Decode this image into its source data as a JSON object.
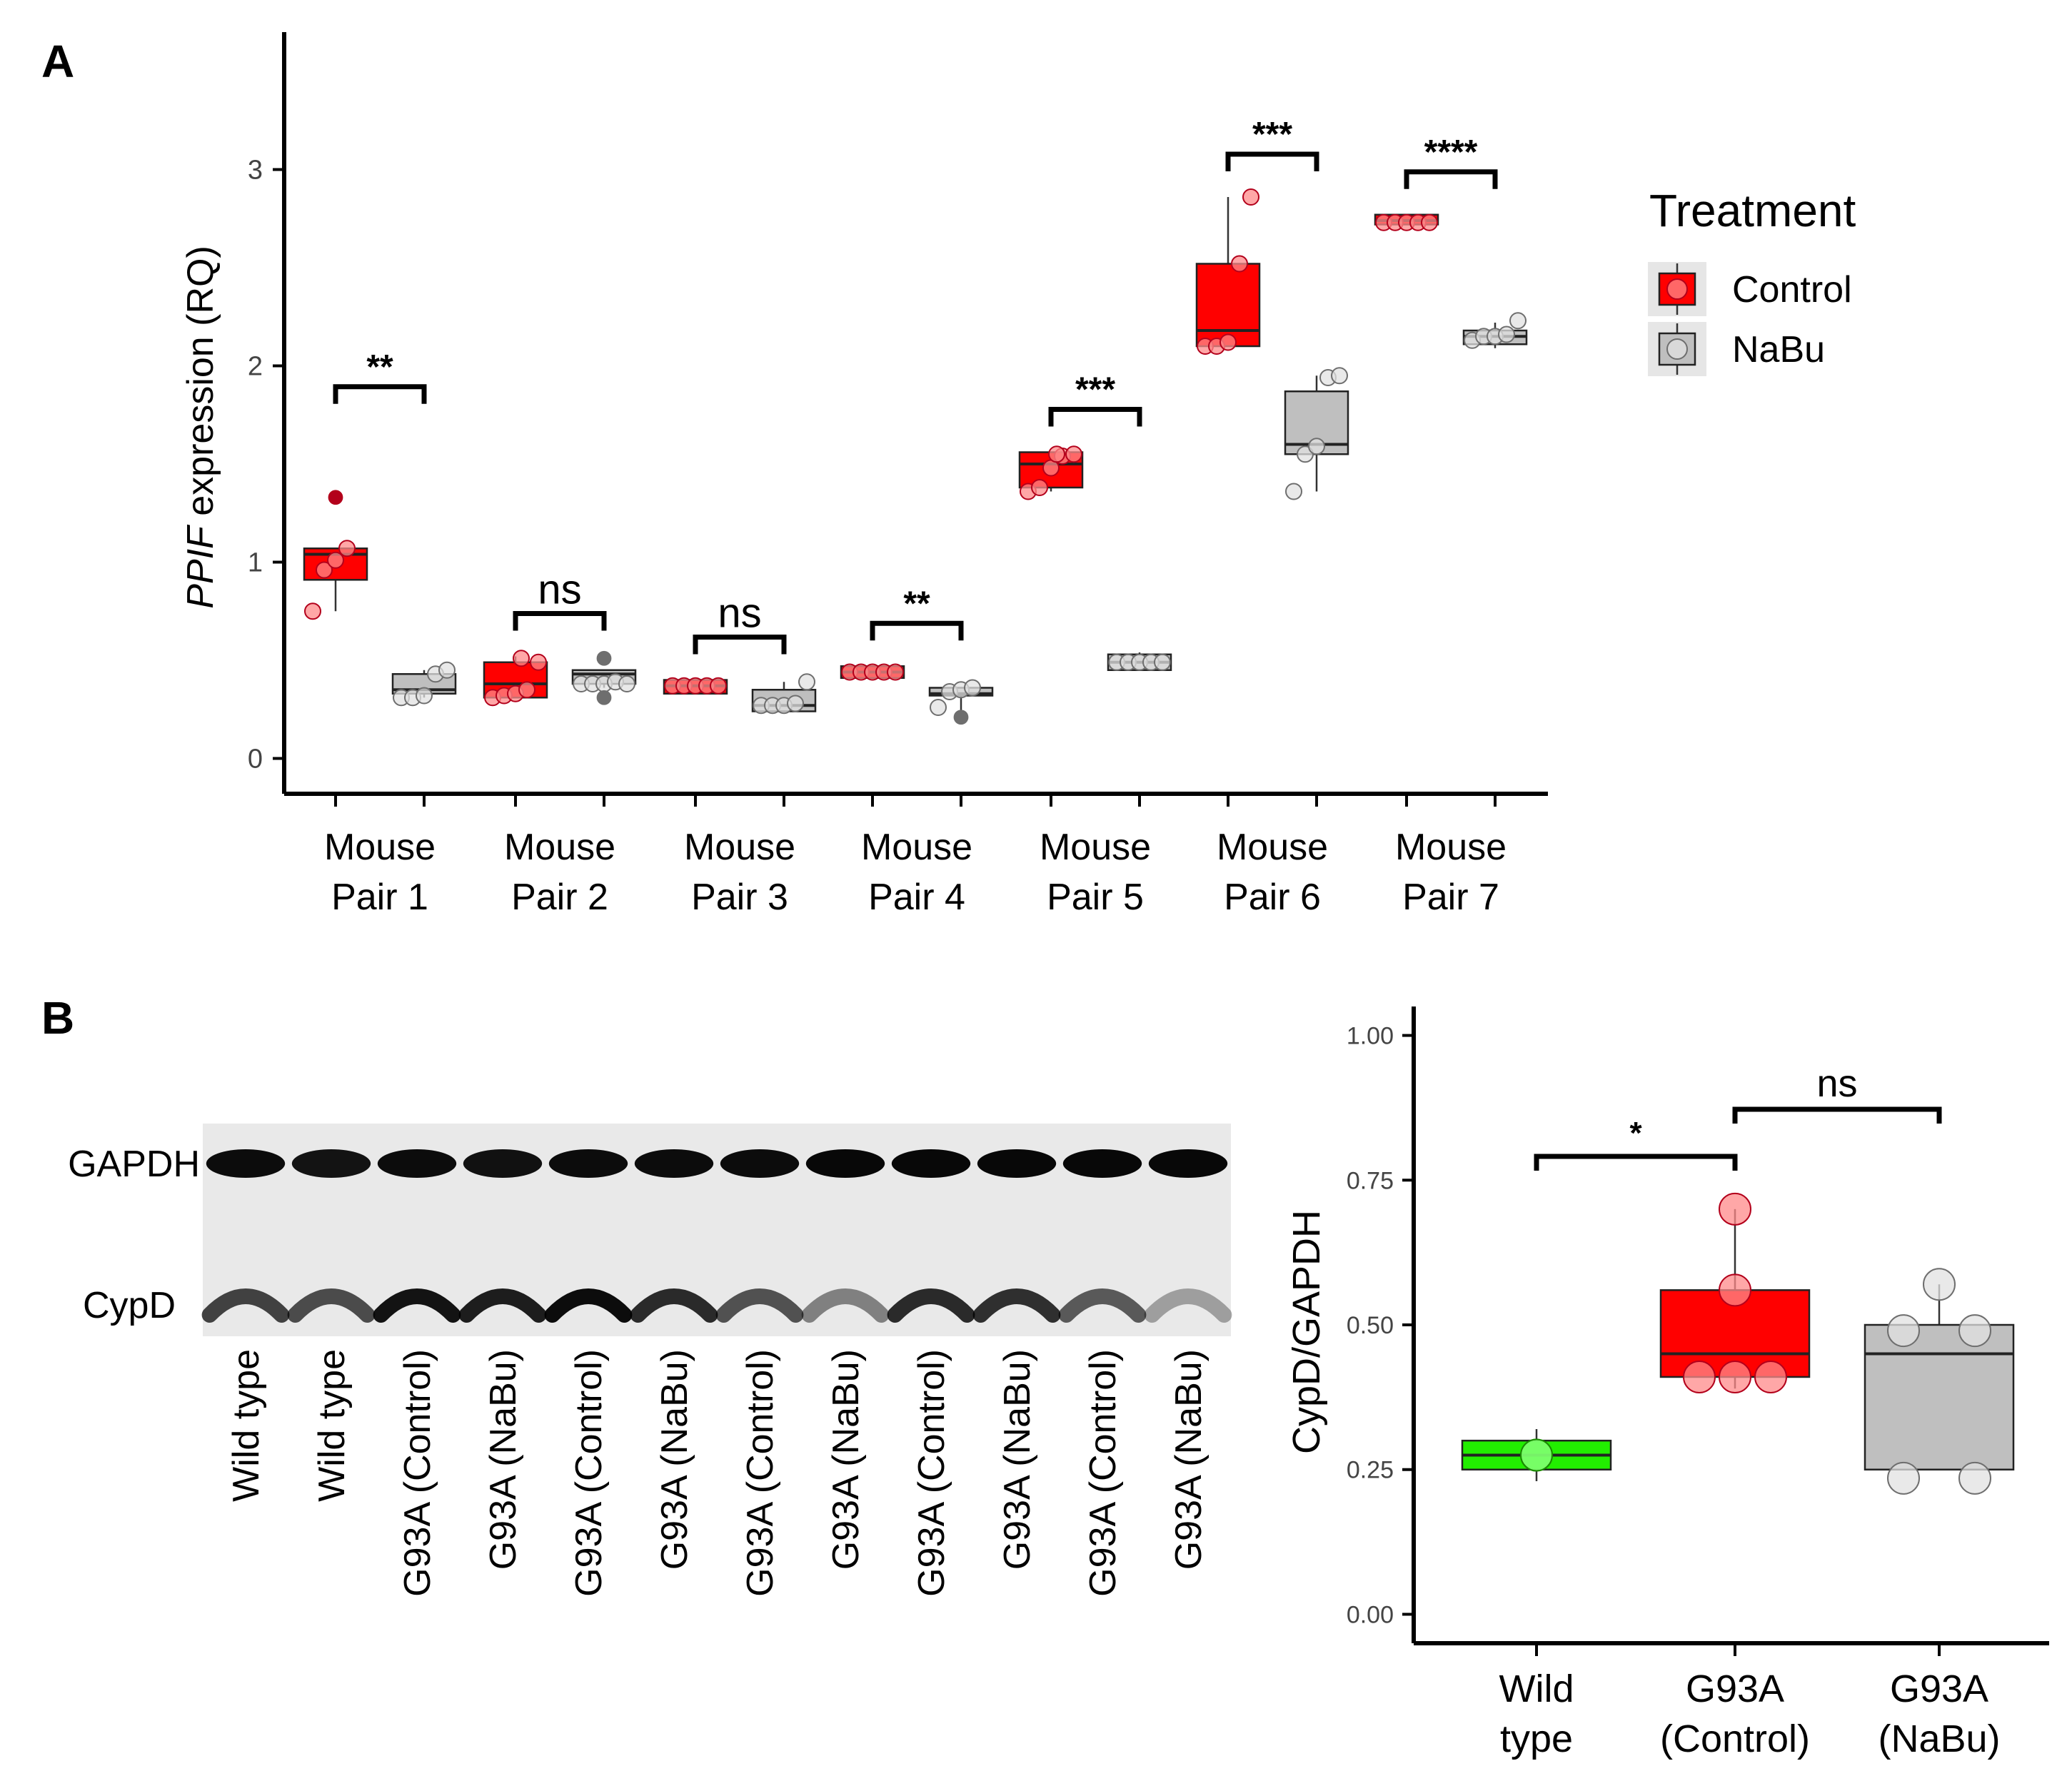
{
  "panel_labels": {
    "a": "A",
    "b": "B"
  },
  "colors": {
    "control": "#ff0000",
    "nabu": "#bfbfbf",
    "wild_type": "#22ee00",
    "axis": "#000000",
    "blot_bg": "#e9e9e9"
  },
  "chart_data": [
    {
      "id": "panel_a",
      "type": "box",
      "ylabel_italic": "PPIF",
      "ylabel_rest": " expression (RQ)",
      "ylim": [
        -0.18,
        3.7
      ],
      "yticks": [
        "0",
        "1",
        "2",
        "3"
      ],
      "categories": [
        [
          "Mouse",
          "Pair 1"
        ],
        [
          "Mouse",
          "Pair 2"
        ],
        [
          "Mouse",
          "Pair 3"
        ],
        [
          "Mouse",
          "Pair 4"
        ],
        [
          "Mouse",
          "Pair 5"
        ],
        [
          "Mouse",
          "Pair 6"
        ],
        [
          "Mouse",
          "Pair 7"
        ]
      ],
      "legend": {
        "title": "Treatment",
        "entries": [
          "Control",
          "NaBu"
        ],
        "position": "right"
      },
      "series": [
        {
          "name": "Control",
          "boxes": [
            {
              "min": 0.75,
              "q1": 0.91,
              "median": 1.04,
              "q3": 1.07,
              "max": 1.07,
              "points": [
                0.75,
                0.96,
                1.01,
                1.07
              ],
              "outliers": [
                1.33
              ]
            },
            {
              "min": 0.31,
              "q1": 0.31,
              "median": 0.38,
              "q3": 0.49,
              "max": 0.52,
              "points": [
                0.31,
                0.32,
                0.33,
                0.35,
                0.49,
                0.51
              ]
            },
            {
              "min": 0.33,
              "q1": 0.33,
              "median": 0.37,
              "q3": 0.4,
              "max": 0.4,
              "points": [
                0.37,
                0.37,
                0.37,
                0.37,
                0.37
              ]
            },
            {
              "min": 0.41,
              "q1": 0.41,
              "median": 0.44,
              "q3": 0.47,
              "max": 0.47,
              "points": [
                0.44,
                0.44,
                0.44,
                0.44,
                0.44
              ]
            },
            {
              "min": 1.36,
              "q1": 1.38,
              "median": 1.5,
              "q3": 1.56,
              "max": 1.56,
              "points": [
                1.36,
                1.38,
                1.48,
                1.54,
                1.55,
                1.55
              ]
            },
            {
              "min": 2.1,
              "q1": 2.1,
              "median": 2.18,
              "q3": 2.52,
              "max": 2.86,
              "points": [
                2.1,
                2.1,
                2.12,
                2.52,
                2.86
              ]
            },
            {
              "min": 2.72,
              "q1": 2.72,
              "median": 2.74,
              "q3": 2.77,
              "max": 2.77,
              "points": [
                2.73,
                2.73,
                2.73,
                2.73,
                2.73
              ]
            }
          ]
        },
        {
          "name": "NaBu",
          "boxes": [
            {
              "min": 0.31,
              "q1": 0.33,
              "median": 0.35,
              "q3": 0.43,
              "max": 0.45,
              "points": [
                0.31,
                0.31,
                0.32,
                0.43,
                0.45
              ]
            },
            {
              "min": 0.36,
              "q1": 0.38,
              "median": 0.43,
              "q3": 0.45,
              "max": 0.45,
              "points": [
                0.38,
                0.38,
                0.38,
                0.39,
                0.38
              ],
              "outliers": [
                0.31,
                0.51
              ]
            },
            {
              "min": 0.24,
              "q1": 0.24,
              "median": 0.27,
              "q3": 0.35,
              "max": 0.39,
              "points": [
                0.27,
                0.27,
                0.27,
                0.28,
                0.39
              ]
            },
            {
              "min": 0.24,
              "q1": 0.32,
              "median": 0.33,
              "q3": 0.36,
              "max": 0.36,
              "points": [
                0.26,
                0.34,
                0.35,
                0.36
              ],
              "outliers": [
                0.21
              ]
            },
            {
              "min": 0.45,
              "q1": 0.45,
              "median": 0.49,
              "q3": 0.53,
              "max": 0.54,
              "points": [
                0.49,
                0.49,
                0.49,
                0.49,
                0.49
              ]
            },
            {
              "min": 1.36,
              "q1": 1.55,
              "median": 1.6,
              "q3": 1.87,
              "max": 1.95,
              "points": [
                1.36,
                1.55,
                1.59,
                1.94,
                1.95
              ]
            },
            {
              "min": 2.09,
              "q1": 2.11,
              "median": 2.15,
              "q3": 2.18,
              "max": 2.22,
              "points": [
                2.13,
                2.15,
                2.15,
                2.16,
                2.23
              ]
            }
          ]
        }
      ],
      "significance": [
        "**",
        "ns",
        "ns",
        "**",
        "***",
        "***",
        "****"
      ]
    },
    {
      "id": "panel_b_chart",
      "type": "box",
      "ylabel": "CypD/GAPDH",
      "ylim": [
        -0.05,
        1.05
      ],
      "yticks": [
        "0.00",
        "0.25",
        "0.50",
        "0.75",
        "1.00"
      ],
      "categories": [
        [
          "Wild",
          "type"
        ],
        [
          "G93A",
          "(Control)"
        ],
        [
          "G93A",
          "(NaBu)"
        ]
      ],
      "boxes": [
        {
          "group": "Wild type",
          "min": 0.23,
          "q1": 0.25,
          "median": 0.275,
          "q3": 0.3,
          "max": 0.32,
          "points": [
            0.275,
            0.275
          ]
        },
        {
          "group": "G93A (Control)",
          "min": 0.39,
          "q1": 0.41,
          "median": 0.45,
          "q3": 0.56,
          "max": 0.7,
          "points": [
            0.7,
            0.56,
            0.41,
            0.41,
            0.41
          ]
        },
        {
          "group": "G93A (NaBu)",
          "min": 0.25,
          "q1": 0.25,
          "median": 0.45,
          "q3": 0.5,
          "max": 0.57,
          "points": [
            0.57,
            0.49,
            0.49,
            0.235,
            0.235
          ]
        }
      ],
      "significance": [
        {
          "from": 0,
          "to": 1,
          "label": "*"
        },
        {
          "from": 1,
          "to": 2,
          "label": "ns"
        }
      ]
    }
  ],
  "western_blot": {
    "bands": [
      "GAPDH",
      "CypD"
    ],
    "lanes": [
      "Wild type",
      "Wild type",
      "G93A (Control)",
      "G93A (NaBu)",
      "G93A (Control)",
      "G93A (NaBu)",
      "G93A (Control)",
      "G93A (NaBu)",
      "G93A (Control)",
      "G93A (NaBu)",
      "G93A (Control)",
      "G93A (NaBu)"
    ],
    "gapdh_intensity": [
      0.95,
      0.92,
      0.95,
      0.93,
      0.95,
      0.95,
      0.95,
      0.97,
      0.97,
      0.97,
      0.97,
      0.97
    ],
    "cypd_intensity": [
      0.72,
      0.68,
      0.92,
      0.88,
      0.95,
      0.82,
      0.65,
      0.45,
      0.82,
      0.8,
      0.62,
      0.32
    ]
  }
}
